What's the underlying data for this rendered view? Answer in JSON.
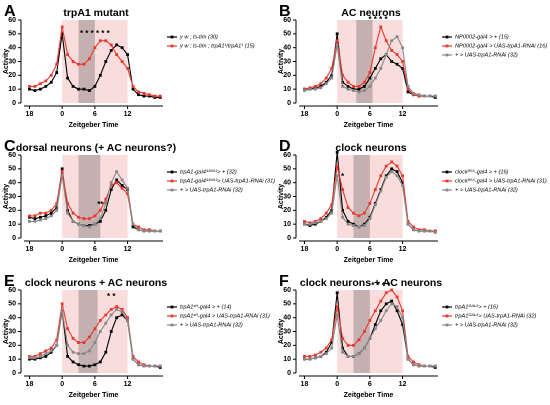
{
  "chart_data": [
    {
      "type": "line",
      "panel_label": "A",
      "title": "trpA1 mutant",
      "xlabel": "Zeitgeber Time",
      "ylabel": "Activity",
      "x": [
        -6,
        -5,
        -4,
        -3,
        -2,
        -1,
        0,
        1,
        2,
        3,
        4,
        5,
        6,
        7,
        8,
        9,
        10,
        11,
        12,
        13,
        14,
        15,
        16,
        17,
        18
      ],
      "xlim": [
        -7,
        18.5
      ],
      "xticks": [
        {
          "value": -6,
          "label": "18"
        },
        0,
        6,
        12
      ],
      "ylim": [
        0,
        60
      ],
      "yticks": [
        0,
        10,
        20,
        30,
        40,
        50,
        60
      ],
      "bands": [
        {
          "x": [
            0,
            12
          ],
          "color": "#f9dcdc"
        },
        {
          "x": [
            3,
            6
          ],
          "color": "#c4b0b0"
        }
      ],
      "annotations": [
        {
          "x": 6,
          "y": 50,
          "text": "* * * * * *"
        }
      ],
      "series": [
        {
          "name": "y w ; ls-tim (30)",
          "color": "#000000",
          "values": [
            10,
            9,
            10,
            12,
            15,
            22,
            50,
            18,
            12,
            10,
            10,
            9,
            12,
            20,
            30,
            38,
            42,
            40,
            35,
            10,
            6,
            5,
            5,
            4,
            4
          ]
        },
        {
          "name": "y w ; ls-tim ; trpA1¹/trpA1¹ (15)",
          "color": "#e8392f",
          "values": [
            12,
            12,
            14,
            16,
            20,
            28,
            55,
            35,
            30,
            28,
            28,
            32,
            40,
            45,
            45,
            42,
            35,
            30,
            25,
            12,
            8,
            7,
            6,
            5,
            5
          ]
        }
      ]
    },
    {
      "type": "line",
      "panel_label": "B",
      "title": "AC neurons",
      "xlabel": "Zeitgeber Time",
      "ylabel": "Activity",
      "x": [
        -6,
        -5,
        -4,
        -3,
        -2,
        -1,
        0,
        1,
        2,
        3,
        4,
        5,
        6,
        7,
        8,
        9,
        10,
        11,
        12,
        13,
        14,
        15,
        16,
        17,
        18
      ],
      "xlim": [
        -7,
        18.5
      ],
      "xticks": [
        {
          "value": -6,
          "label": "18"
        },
        0,
        6,
        12
      ],
      "ylim": [
        0,
        60
      ],
      "yticks": [
        0,
        10,
        20,
        30,
        40,
        50,
        60
      ],
      "bands": [
        {
          "x": [
            0,
            12
          ],
          "color": "#f9dcdc"
        },
        {
          "x": [
            3.5,
            6.5
          ],
          "color": "#c4b0b0"
        }
      ],
      "annotations": [
        {
          "x": 7.5,
          "y": 60,
          "text": "* * * *"
        }
      ],
      "series": [
        {
          "name": "NP0002-gal4 > + (15)",
          "color": "#000000",
          "values": [
            10,
            10,
            11,
            12,
            15,
            20,
            50,
            15,
            12,
            10,
            10,
            12,
            18,
            25,
            32,
            35,
            30,
            28,
            25,
            8,
            6,
            5,
            5,
            5,
            4
          ]
        },
        {
          "name": "NP0002-gal4 > UAS-trpA1-RNAi (16)",
          "color": "#e8392f",
          "values": [
            10,
            11,
            12,
            14,
            18,
            25,
            45,
            20,
            15,
            12,
            12,
            15,
            22,
            40,
            55,
            45,
            38,
            35,
            30,
            10,
            6,
            5,
            5,
            5,
            5
          ]
        },
        {
          "name": "+ > UAS-trpA1-RNAi (32)",
          "color": "#888888",
          "values": [
            9,
            10,
            10,
            11,
            14,
            18,
            42,
            12,
            10,
            9,
            8,
            9,
            12,
            18,
            25,
            35,
            45,
            48,
            40,
            12,
            7,
            6,
            5,
            5,
            5
          ]
        }
      ]
    },
    {
      "type": "line",
      "panel_label": "C",
      "title": "dorsal neurons (+ AC neurons?)",
      "xlabel": "Zeitgeber Time",
      "ylabel": "Activity",
      "x": [
        -6,
        -5,
        -4,
        -3,
        -2,
        -1,
        0,
        1,
        2,
        3,
        4,
        5,
        6,
        7,
        8,
        9,
        10,
        11,
        12,
        13,
        14,
        15,
        16,
        17,
        18
      ],
      "xlim": [
        -7,
        18.5
      ],
      "xticks": [
        {
          "value": -6,
          "label": "18"
        },
        0,
        6,
        12
      ],
      "ylim": [
        0,
        60
      ],
      "yticks": [
        0,
        10,
        20,
        30,
        40,
        50,
        60
      ],
      "bands": [
        {
          "x": [
            0,
            12
          ],
          "color": "#f9dcdc"
        },
        {
          "x": [
            3,
            7
          ],
          "color": "#c4b0b0"
        }
      ],
      "annotations": [
        {
          "x": 7,
          "y": 24,
          "text": "**"
        }
      ],
      "series": [
        {
          "name": "trpA1-gal4⁴⁸⁶⁶¹> + (32)",
          "color": "#000000",
          "values": [
            15,
            14,
            15,
            16,
            18,
            22,
            50,
            20,
            12,
            10,
            9,
            9,
            10,
            12,
            20,
            35,
            42,
            38,
            35,
            8,
            6,
            5,
            5,
            5,
            5
          ]
        },
        {
          "name": "trpA1-gal4⁴⁸⁶⁶¹> UAS-trpA1-RNAi (31)",
          "color": "#e8392f",
          "values": [
            16,
            16,
            18,
            18,
            20,
            25,
            48,
            25,
            18,
            15,
            14,
            14,
            16,
            20,
            28,
            38,
            40,
            36,
            32,
            10,
            8,
            6,
            6,
            5,
            5
          ]
        },
        {
          "name": "+ > UAS-trpA1-RNAi (32)",
          "color": "#888888",
          "values": [
            12,
            12,
            13,
            14,
            16,
            20,
            45,
            18,
            12,
            10,
            9,
            8,
            10,
            14,
            25,
            40,
            48,
            42,
            36,
            10,
            6,
            5,
            5,
            5,
            5
          ]
        }
      ]
    },
    {
      "type": "line",
      "panel_label": "D",
      "title": "clock neurons",
      "xlabel": "Zeitgeber Time",
      "ylabel": "Activity",
      "x": [
        -6,
        -5,
        -4,
        -3,
        -2,
        -1,
        0,
        1,
        2,
        3,
        4,
        5,
        6,
        7,
        8,
        9,
        10,
        11,
        12,
        13,
        14,
        15,
        16,
        17,
        18
      ],
      "xlim": [
        -7,
        18.5
      ],
      "xticks": [
        {
          "value": -6,
          "label": "18"
        },
        0,
        6,
        12
      ],
      "ylim": [
        0,
        60
      ],
      "yticks": [
        0,
        10,
        20,
        30,
        40,
        50,
        60
      ],
      "bands": [
        {
          "x": [
            0,
            12
          ],
          "color": "#f9dcdc"
        },
        {
          "x": [
            3,
            6
          ],
          "color": "#c4b0b0"
        }
      ],
      "annotations": [
        {
          "x": 1,
          "y": 44,
          "text": "*"
        }
      ],
      "series": [
        {
          "name": "clock⁸⁵⁶-gal4 > + (16)",
          "color": "#000000",
          "values": [
            10,
            9,
            10,
            12,
            15,
            20,
            62,
            20,
            12,
            10,
            8,
            10,
            15,
            25,
            35,
            45,
            50,
            48,
            40,
            10,
            6,
            5,
            5,
            5,
            5
          ]
        },
        {
          "name": "clock⁸⁵⁶-gal4 > UAS-trpA1-RNAi (31)",
          "color": "#e8392f",
          "values": [
            12,
            11,
            12,
            14,
            18,
            24,
            52,
            35,
            22,
            18,
            16,
            18,
            25,
            35,
            45,
            52,
            55,
            52,
            45,
            12,
            8,
            6,
            6,
            5,
            5
          ]
        },
        {
          "name": "+ > UAS-trpA1-RNAi (32)",
          "color": "#888888",
          "values": [
            10,
            10,
            11,
            12,
            14,
            18,
            45,
            15,
            10,
            9,
            8,
            9,
            14,
            24,
            34,
            44,
            48,
            45,
            38,
            10,
            6,
            5,
            5,
            5,
            4
          ]
        }
      ]
    },
    {
      "type": "line",
      "panel_label": "E",
      "title": "clock neurons + AC neurons",
      "xlabel": "Zeitgeber Time",
      "ylabel": "Activity",
      "x": [
        -6,
        -5,
        -4,
        -3,
        -2,
        -1,
        0,
        1,
        2,
        3,
        4,
        5,
        6,
        7,
        8,
        9,
        10,
        11,
        12,
        13,
        14,
        15,
        16,
        17,
        18
      ],
      "xlim": [
        -7,
        18.5
      ],
      "xticks": [
        {
          "value": -6,
          "label": "18"
        },
        0,
        6,
        12
      ],
      "ylim": [
        0,
        60
      ],
      "yticks": [
        0,
        10,
        20,
        30,
        40,
        50,
        60
      ],
      "bands": [
        {
          "x": [
            0,
            12
          ],
          "color": "#f9dcdc"
        },
        {
          "x": [
            3,
            6.5
          ],
          "color": "#c4b0b0"
        }
      ],
      "annotations": [
        {
          "x": 9,
          "y": 55,
          "text": "* *"
        }
      ],
      "series": [
        {
          "name": "trpA1ˢᴴ-gal4 > + (14)",
          "color": "#000000",
          "values": [
            10,
            10,
            11,
            12,
            15,
            20,
            45,
            12,
            8,
            6,
            5,
            5,
            6,
            8,
            15,
            30,
            40,
            42,
            38,
            10,
            6,
            5,
            5,
            5,
            4
          ]
        },
        {
          "name": "trpA1ˢᴴ-gal4 > UAS-trpA1-RNAi (31)",
          "color": "#e8392f",
          "values": [
            12,
            12,
            14,
            16,
            18,
            24,
            50,
            32,
            25,
            22,
            22,
            26,
            32,
            38,
            42,
            46,
            48,
            46,
            40,
            12,
            8,
            6,
            5,
            5,
            5
          ]
        },
        {
          "name": "+ > UAS-trpA1-RNAi (32)",
          "color": "#888888",
          "values": [
            11,
            11,
            12,
            14,
            16,
            20,
            45,
            20,
            15,
            14,
            14,
            16,
            22,
            30,
            36,
            42,
            46,
            44,
            38,
            10,
            6,
            5,
            5,
            5,
            5
          ]
        }
      ]
    },
    {
      "type": "line",
      "panel_label": "F",
      "title": "clock neurons + AC neurons",
      "xlabel": "Zeitgeber Time",
      "ylabel": "Activity",
      "x": [
        -6,
        -5,
        -4,
        -3,
        -2,
        -1,
        0,
        1,
        2,
        3,
        4,
        5,
        6,
        7,
        8,
        9,
        10,
        11,
        12,
        13,
        14,
        15,
        16,
        17,
        18
      ],
      "xlim": [
        -7,
        18.5
      ],
      "xticks": [
        {
          "value": -6,
          "label": "18"
        },
        0,
        6,
        12
      ],
      "ylim": [
        0,
        60
      ],
      "yticks": [
        0,
        10,
        20,
        30,
        40,
        50,
        60
      ],
      "bands": [
        {
          "x": [
            0,
            12
          ],
          "color": "#f9dcdc"
        },
        {
          "x": [
            3,
            6
          ],
          "color": "#c4b0b0"
        }
      ],
      "annotations": [
        {
          "x": 8,
          "y": 63,
          "text": "* * * *"
        }
      ],
      "series": [
        {
          "name": "trpA1ᴳᴬᴸ⁴> + (16)",
          "color": "#000000",
          "values": [
            10,
            10,
            11,
            12,
            15,
            22,
            58,
            18,
            12,
            12,
            14,
            18,
            25,
            35,
            45,
            50,
            52,
            45,
            35,
            10,
            6,
            5,
            5,
            5,
            4
          ]
        },
        {
          "name": "trpA1ᴳᴬᴸ⁴> UAS-trpA1-RNAi (32)",
          "color": "#e8392f",
          "values": [
            12,
            12,
            13,
            15,
            18,
            24,
            48,
            25,
            20,
            20,
            24,
            30,
            38,
            45,
            52,
            58,
            60,
            55,
            45,
            12,
            8,
            6,
            5,
            5,
            5
          ]
        },
        {
          "name": "+ > UAS-trpA1-RNAi (32)",
          "color": "#888888",
          "values": [
            10,
            10,
            11,
            12,
            14,
            18,
            42,
            15,
            12,
            12,
            14,
            18,
            25,
            32,
            38,
            45,
            50,
            48,
            40,
            10,
            6,
            5,
            5,
            5,
            5
          ]
        }
      ]
    }
  ]
}
